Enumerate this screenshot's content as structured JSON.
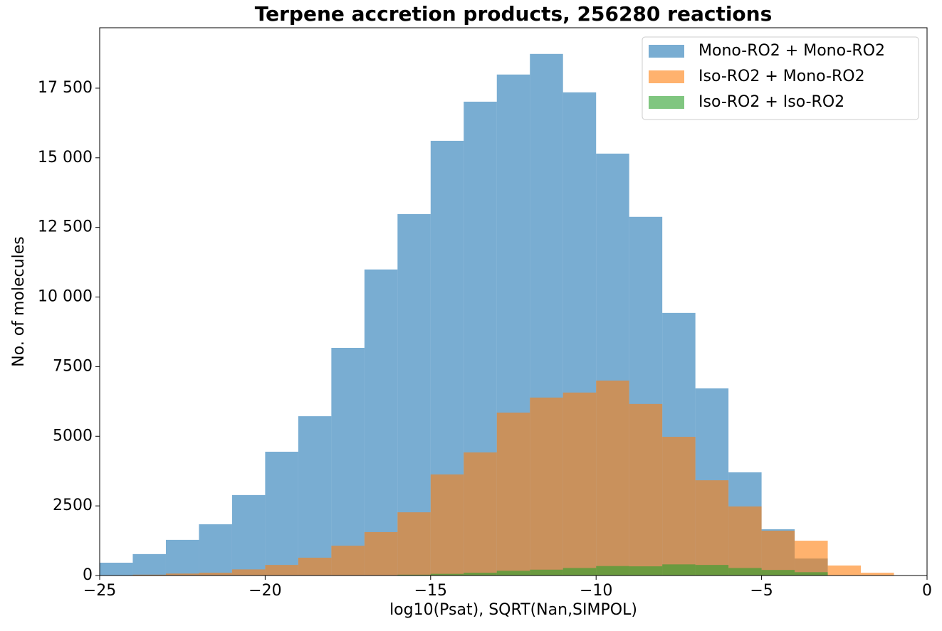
{
  "chart_data": {
    "type": "histogram",
    "title": "Terpene accretion products, 256280 reactions",
    "x_label": "log10(Psat), SQRT(Nan,SIMPOL)",
    "y_label": "No. of molecules",
    "bins": [
      -25,
      -24,
      -23,
      -22,
      -21,
      -20,
      -19,
      -18,
      -17,
      -16,
      -15,
      -14,
      -13,
      -12,
      -11,
      -10,
      -9,
      -8,
      -7,
      -6,
      -5,
      -4,
      -3,
      -2,
      -1
    ],
    "series": [
      {
        "name": "Mono-RO2 + Mono-RO2",
        "color": "#1f77b4",
        "values": [
          460,
          770,
          1280,
          1840,
          2890,
          4445,
          5720,
          8175,
          10990,
          12980,
          15610,
          17015,
          17990,
          18730,
          17350,
          15150,
          12880,
          9430,
          6720,
          3705,
          1660,
          610,
          0,
          0
        ]
      },
      {
        "name": "Iso-RO2 + Mono-RO2",
        "color": "#ff7f0e",
        "values": [
          0,
          30,
          70,
          100,
          220,
          380,
          640,
          1070,
          1560,
          2270,
          3630,
          4420,
          5850,
          6390,
          6570,
          7000,
          6160,
          4980,
          3420,
          2480,
          1610,
          1250,
          360,
          100
        ]
      },
      {
        "name": "Iso-RO2 + Iso-RO2",
        "color": "#2ca02c",
        "values": [
          0,
          0,
          0,
          0,
          0,
          0,
          0,
          0,
          10,
          30,
          60,
          100,
          170,
          210,
          270,
          340,
          330,
          400,
          380,
          270,
          200,
          120,
          0,
          0
        ]
      }
    ],
    "opacity": 0.6,
    "xlim": [
      -25,
      0
    ],
    "xticks": [
      {
        "value": -25,
        "label": "−25"
      },
      {
        "value": -20,
        "label": "−20"
      },
      {
        "value": -15,
        "label": "−15"
      },
      {
        "value": -10,
        "label": "−10"
      },
      {
        "value": -5,
        "label": "−5"
      },
      0
    ],
    "ylim": [
      0,
      19670
    ],
    "yticks": [
      0,
      2500,
      5000,
      7500,
      {
        "value": 10000,
        "label": "10 000"
      },
      {
        "value": 12500,
        "label": "12 500"
      },
      {
        "value": 15000,
        "label": "15 000"
      },
      {
        "value": 17500,
        "label": "17 500"
      }
    ],
    "legend": "upper right"
  }
}
